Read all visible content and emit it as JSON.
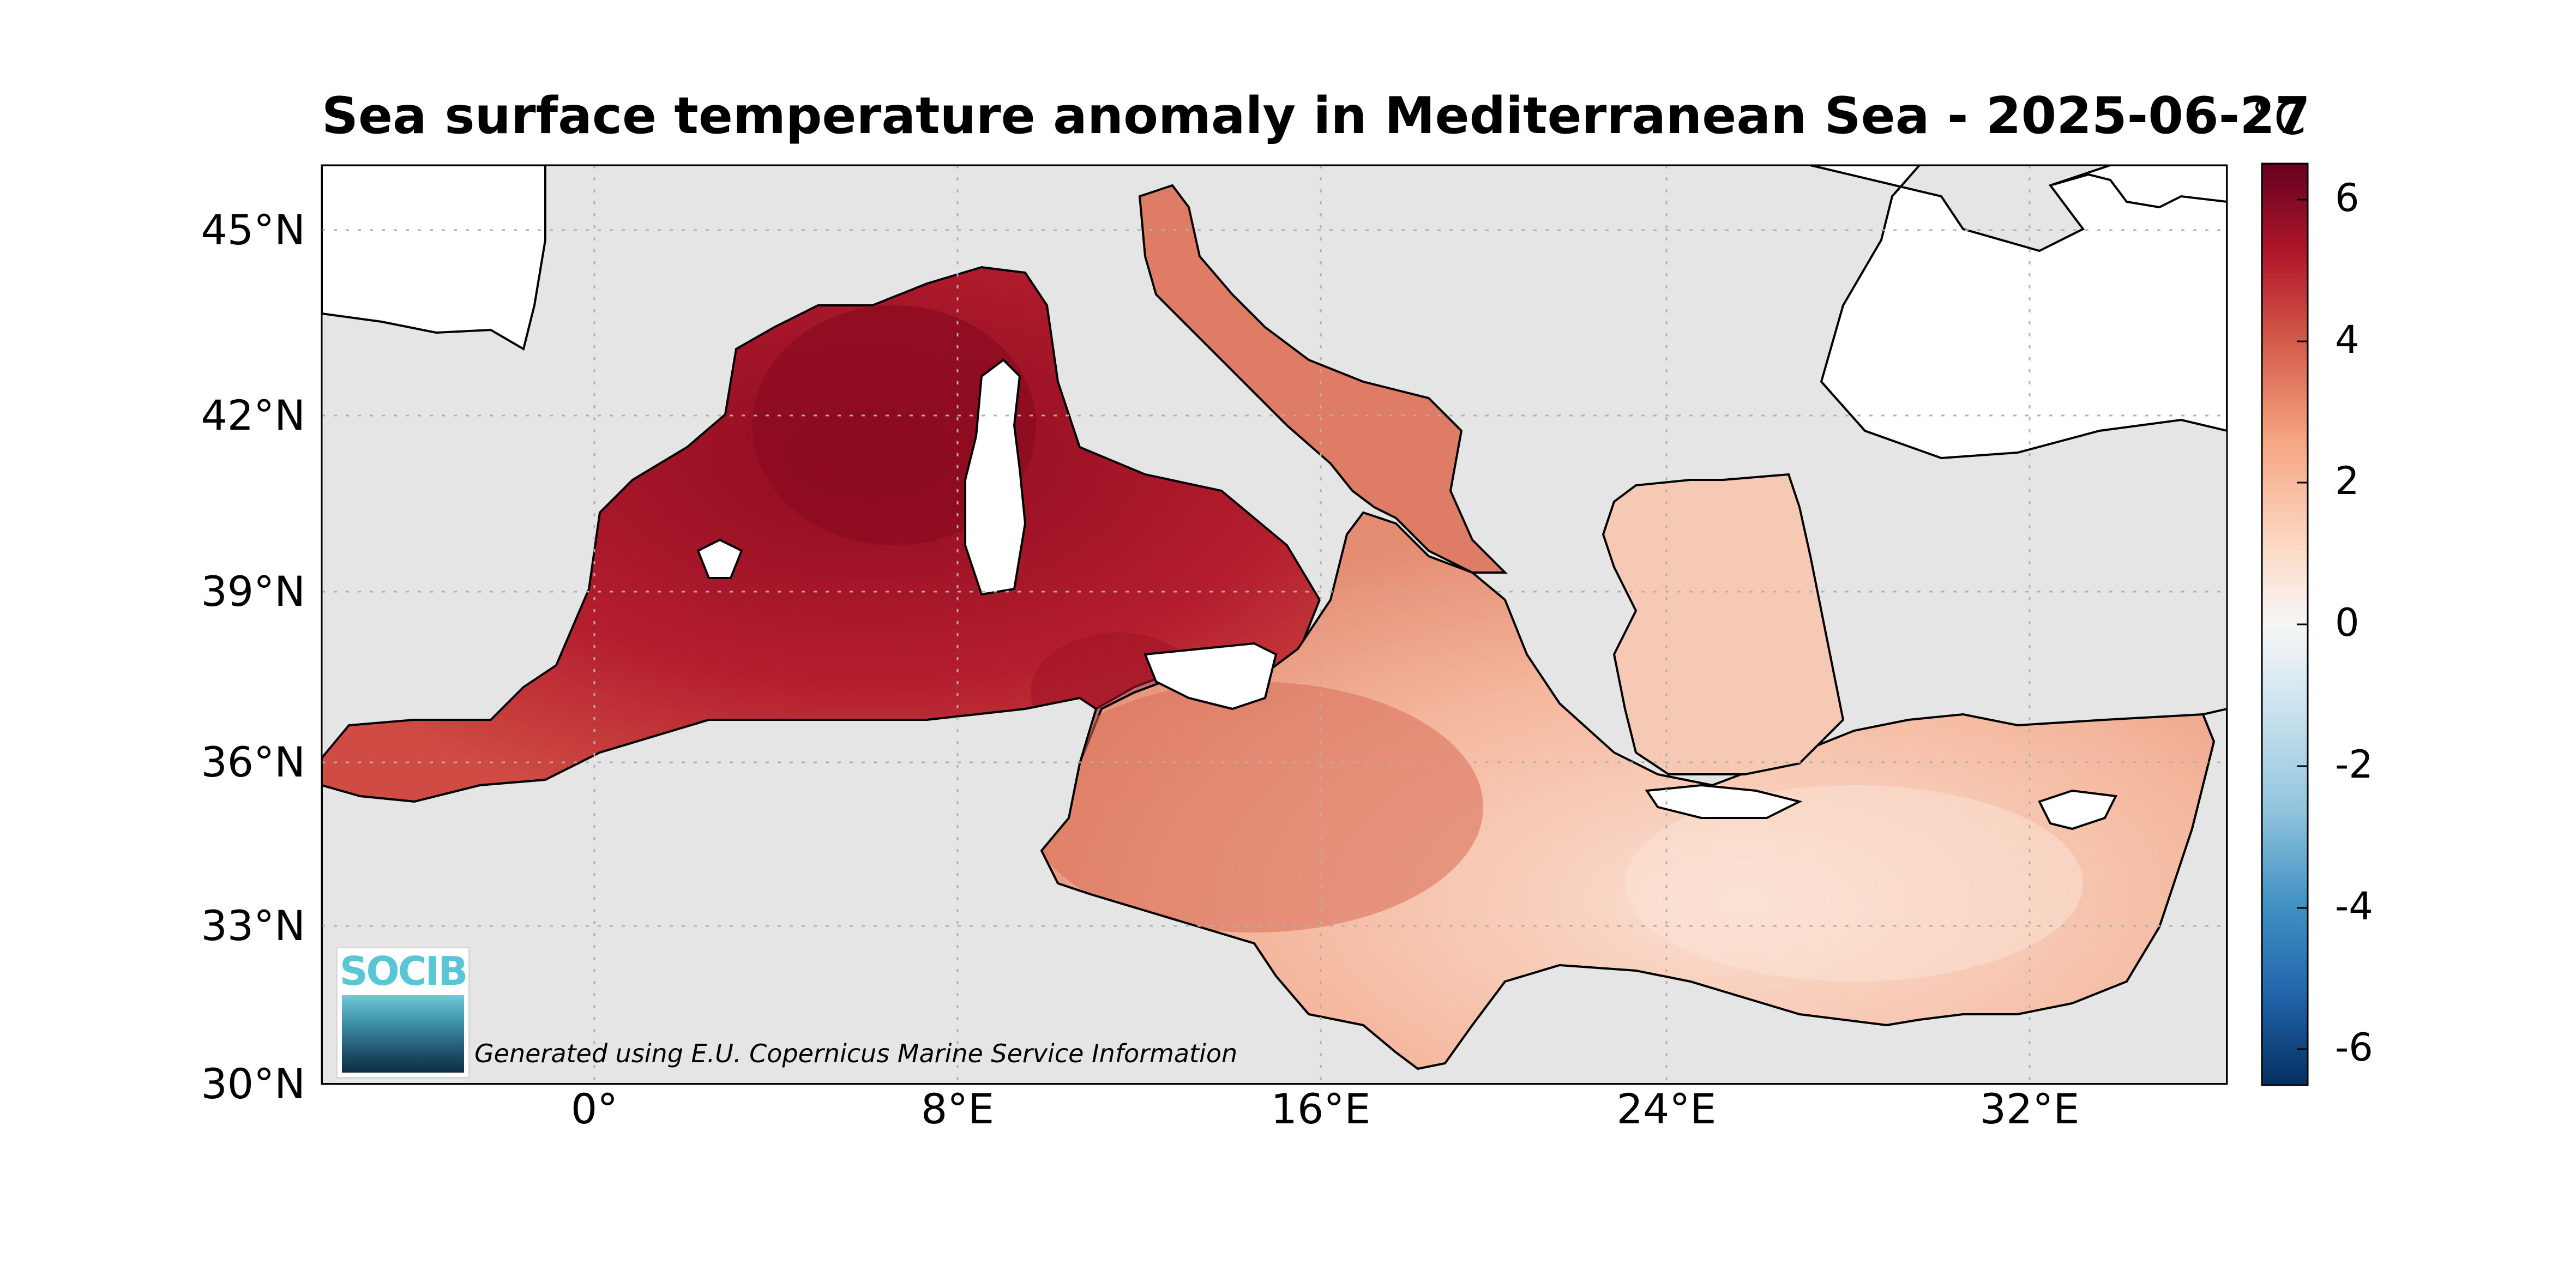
{
  "title": "Sea surface temperature anomaly in Mediterranean Sea - 2025-06-27",
  "footer_note": "Generated using E.U. Copernicus Marine Service Information",
  "logo": {
    "text": "SOCIB"
  },
  "colorbar": {
    "unit": "°C",
    "ticks": [
      "6",
      "4",
      "2",
      "0",
      "-2",
      "-4",
      "-6"
    ],
    "tick_values": [
      6,
      4,
      2,
      0,
      -2,
      -4,
      -6
    ],
    "range": [
      -6.5,
      6.5
    ],
    "colors": {
      "max": "#67001f",
      "high": "#b2182b",
      "mid_high": "#d6604d",
      "low_pos": "#f4a582",
      "light_pos": "#fddbc7",
      "zero": "#f7f7f7",
      "light_neg": "#d1e5f0",
      "low_neg": "#92c5de",
      "mid_neg": "#4393c3",
      "neg": "#2166ac",
      "min": "#053061"
    }
  },
  "axes": {
    "lat_labels": [
      "45°N",
      "42°N",
      "39°N",
      "36°N",
      "33°N",
      "30°N"
    ],
    "lat_values": [
      45,
      42,
      39,
      36,
      33,
      30
    ],
    "lon_labels": [
      "0°",
      "8°E",
      "16°E",
      "24°E",
      "32°E"
    ],
    "lon_values": [
      0,
      8,
      16,
      24,
      32
    ],
    "lon_range": [
      -6,
      36
    ],
    "lat_range": [
      30,
      46
    ]
  },
  "map_colors": {
    "ocean_background": "#e5e5e5",
    "land": "#ffffff",
    "coastline": "#000000",
    "anomaly_west": "#b71c2e",
    "anomaly_tyrrhenian": "#9a0f24",
    "anomaly_central": "#d46150",
    "anomaly_adriatic": "#dc7a64",
    "anomaly_east": "#f2b59a",
    "anomaly_aegean": "#f7d2c0"
  }
}
